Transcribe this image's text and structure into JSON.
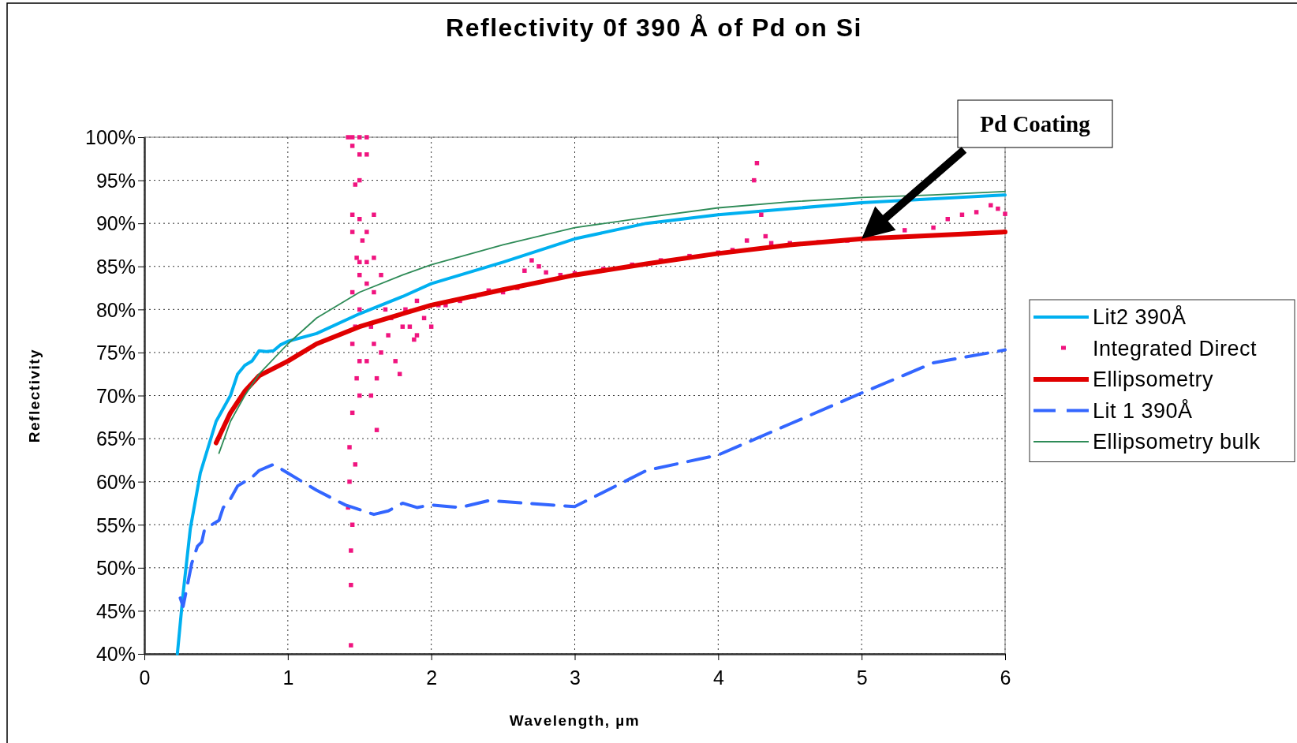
{
  "chart_data": {
    "type": "line",
    "title": "Reflectivity 0f 390 Å of Pd on Si",
    "xlabel": "Wavelength,  µm",
    "ylabel": "Reflectivity",
    "xlim": [
      0,
      6
    ],
    "xticks": [
      0,
      1,
      2,
      3,
      4,
      5,
      6
    ],
    "ylim": [
      40,
      100
    ],
    "yticks": [
      {
        "value": 40,
        "label": "40%"
      },
      {
        "value": 45,
        "label": "45%"
      },
      {
        "value": 50,
        "label": "50%"
      },
      {
        "value": 55,
        "label": "55%"
      },
      {
        "value": 60,
        "label": "60%"
      },
      {
        "value": 65,
        "label": "65%"
      },
      {
        "value": 70,
        "label": "70%"
      },
      {
        "value": 75,
        "label": "75%"
      },
      {
        "value": 80,
        "label": "80%"
      },
      {
        "value": 85,
        "label": "85%"
      },
      {
        "value": 90,
        "label": "90%"
      },
      {
        "value": 95,
        "label": "95%"
      },
      {
        "value": 100,
        "label": "100%"
      }
    ],
    "grid": true,
    "legend": "right",
    "annotations": [
      "Pd Coating"
    ],
    "series": [
      {
        "name": "Lit2  390Å",
        "color": "#00b0f0",
        "line_style": "solid",
        "marker": "none",
        "x": [
          0.23,
          0.27,
          0.32,
          0.39,
          0.5,
          0.6,
          0.65,
          0.7,
          0.75,
          0.8,
          0.85,
          0.9,
          0.95,
          1.0,
          1.2,
          1.5,
          1.8,
          2.0,
          2.5,
          3.0,
          3.5,
          4.0,
          5.0,
          6.0
        ],
        "values": [
          40,
          47,
          54.5,
          61,
          67,
          70,
          72.5,
          73.5,
          74,
          75.2,
          75.1,
          75.2,
          75.9,
          76.3,
          77.2,
          79.5,
          81.5,
          83,
          85.5,
          88.2,
          90,
          91,
          92.4,
          93.3
        ]
      },
      {
        "name": "Integrated Direct",
        "color": "#f0147f",
        "type": "scatter",
        "marker": "square",
        "x": [
          1.42,
          1.45,
          1.5,
          1.55,
          1.45,
          1.5,
          1.55,
          1.5,
          1.47,
          1.45,
          1.6,
          1.5,
          1.45,
          1.55,
          1.52,
          1.48,
          1.6,
          1.5,
          1.55,
          1.5,
          1.65,
          1.55,
          1.45,
          1.6,
          1.5,
          1.47,
          1.58,
          1.45,
          1.6,
          1.5,
          1.55,
          1.48,
          1.62,
          1.5,
          1.58,
          1.45,
          1.62,
          1.43,
          1.47,
          1.43,
          1.42,
          1.45,
          1.44,
          1.44,
          1.44,
          1.65,
          1.7,
          1.75,
          1.72,
          1.8,
          1.85,
          1.9,
          1.95,
          2.0,
          1.82,
          1.9,
          1.78,
          1.68,
          1.88,
          2.05,
          2.1,
          2.2,
          2.3,
          2.4,
          2.5,
          2.6,
          2.65,
          2.7,
          2.75,
          2.8,
          2.9,
          3.0,
          3.2,
          3.4,
          3.6,
          3.8,
          4.0,
          4.1,
          4.2,
          4.25,
          4.27,
          4.3,
          4.33,
          4.37,
          4.5,
          4.7,
          4.9,
          5.3,
          5.5,
          5.6,
          5.7,
          5.8,
          5.9,
          5.95,
          6.0
        ],
        "values": [
          100,
          100,
          100,
          100,
          99,
          98,
          98,
          95,
          94.5,
          91,
          91,
          90.5,
          89,
          89,
          88,
          86,
          86,
          85.5,
          85.5,
          84,
          84,
          83,
          82,
          82,
          80,
          78,
          78,
          76,
          76,
          74,
          74,
          72,
          72,
          70,
          70,
          68,
          66,
          64,
          62,
          60,
          57,
          55,
          52,
          48,
          41,
          75,
          77,
          74,
          79,
          78,
          78,
          77,
          79,
          78,
          80,
          81,
          72.5,
          80,
          76.5,
          80.5,
          80.5,
          81,
          81.5,
          82.2,
          82,
          82.5,
          84.5,
          85.7,
          85,
          84.3,
          84,
          84.2,
          84.7,
          85.2,
          85.7,
          86.2,
          86.6,
          86.9,
          88,
          95,
          97,
          91,
          88.5,
          87.7,
          87.7,
          87.8,
          88,
          89.2,
          89.5,
          90.5,
          91,
          91.3,
          92.1,
          91.7,
          91.1
        ]
      },
      {
        "name": "Ellipsometry",
        "color": "#e00000",
        "line_style": "solid",
        "marker": "none",
        "x": [
          0.5,
          0.6,
          0.7,
          0.8,
          1.0,
          1.2,
          1.5,
          2.0,
          2.5,
          3.0,
          3.5,
          4.0,
          4.5,
          5.0,
          5.5,
          6.0
        ],
        "values": [
          64.5,
          68,
          70.5,
          72.3,
          74,
          76,
          78,
          80.5,
          82.3,
          84,
          85.3,
          86.5,
          87.5,
          88.2,
          88.6,
          89
        ]
      },
      {
        "name": "Lit 1  390Å",
        "color": "#3366ff",
        "line_style": "dashed",
        "marker": "none",
        "x": [
          0.25,
          0.27,
          0.3,
          0.33,
          0.37,
          0.4,
          0.42,
          0.47,
          0.52,
          0.55,
          0.6,
          0.65,
          0.75,
          0.8,
          0.9,
          1.0,
          1.2,
          1.4,
          1.6,
          1.7,
          1.8,
          1.9,
          2.0,
          2.2,
          2.4,
          3.0,
          3.5,
          4.0,
          4.5,
          5.0,
          5.5,
          6.0
        ],
        "values": [
          46.5,
          45.5,
          48,
          50.5,
          52.5,
          53,
          54.5,
          55,
          55.5,
          57,
          58,
          59.5,
          60.5,
          61.3,
          62,
          61,
          59,
          57.3,
          56.2,
          56.6,
          57.5,
          57,
          57.3,
          57,
          57.8,
          57.1,
          61.3,
          63.1,
          66.7,
          70.3,
          73.8,
          75.3
        ]
      },
      {
        "name": "Ellipsometry bulk",
        "color": "#2e8b57",
        "line_style": "solid",
        "marker": "none",
        "x": [
          0.52,
          0.6,
          0.7,
          0.8,
          1.0,
          1.2,
          1.5,
          1.8,
          2.0,
          2.5,
          3.0,
          3.5,
          4.0,
          4.5,
          5.0,
          5.5,
          6.0
        ],
        "values": [
          63.3,
          67,
          70,
          72.5,
          76,
          79,
          82,
          84,
          85.2,
          87.5,
          89.5,
          90.7,
          91.8,
          92.5,
          93,
          93.3,
          93.7
        ]
      }
    ]
  }
}
